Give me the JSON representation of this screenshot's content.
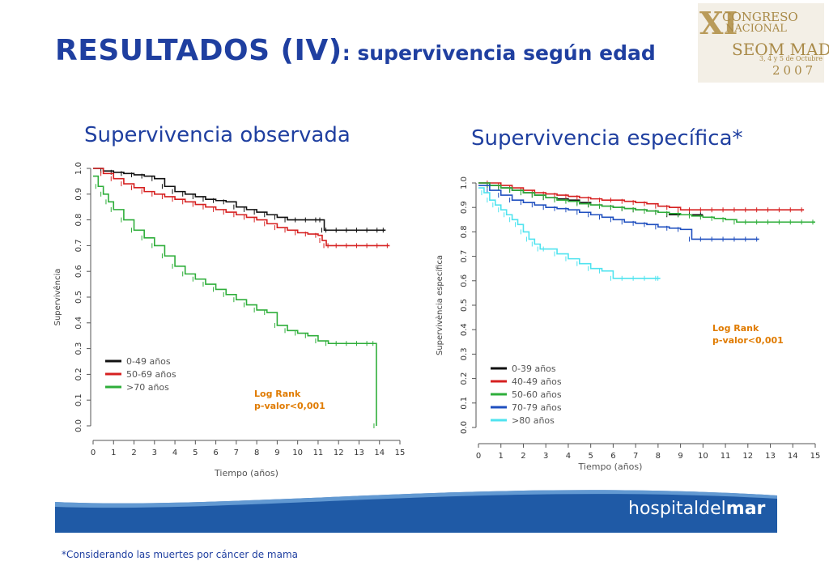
{
  "slide": {
    "title_main": "RESULTADOS (IV)",
    "title_sub": ": supervivencia según edad",
    "footnote": "*Considerando las muertes por cáncer de mama",
    "brand_prefix": "hospitaldel",
    "brand_bold": "mar"
  },
  "logo": {
    "numeral": "XI",
    "line1": "CONGRESO",
    "line2": "NACIONAL",
    "line3": "SEOM MADRID",
    "line4": "3, 4 y 5 de Octubre",
    "line5": "2007"
  },
  "panels": {
    "left_title": "Supervivencia observada",
    "right_title": "Supervivencia específica*"
  },
  "colors": {
    "title_blue": "#1f3fa0",
    "annotation_orange": "#e07b00",
    "banner_blue": "#1f5aa6"
  },
  "chart_data": [
    {
      "type": "line",
      "title": "Supervivencia observada",
      "xlabel": "Tiempo (años)",
      "ylabel": "Supervivência",
      "xlim": [
        0,
        15
      ],
      "ylim": [
        0,
        1
      ],
      "xticks": [
        "0",
        "1",
        "2",
        "3",
        "4",
        "5",
        "6",
        "7",
        "8",
        "9",
        "10",
        "11",
        "12",
        "13",
        "14",
        "15"
      ],
      "yticks": [
        "0.0",
        "0.1",
        "0.2",
        "0.3",
        "0.4",
        "0.5",
        "0.6",
        "0.7",
        "0.8",
        "0.9",
        "1.0"
      ],
      "legend_position": "bottom-left",
      "annotation": [
        "Log Rank",
        "p-valor<0,001"
      ],
      "series": [
        {
          "name": "0-49 años",
          "color": "#111111",
          "x": [
            0,
            0.5,
            1,
            1.5,
            2,
            2.5,
            3,
            3.5,
            4,
            4.5,
            5,
            5.5,
            6,
            6.5,
            7,
            7.5,
            8,
            8.5,
            9,
            9.5,
            10,
            10.5,
            11,
            11.2,
            11.3,
            11.5,
            12,
            12.5,
            13,
            13.5,
            14,
            14.3
          ],
          "y": [
            1.0,
            0.99,
            0.985,
            0.98,
            0.975,
            0.97,
            0.96,
            0.93,
            0.91,
            0.9,
            0.89,
            0.88,
            0.875,
            0.87,
            0.85,
            0.84,
            0.83,
            0.82,
            0.81,
            0.8,
            0.8,
            0.8,
            0.8,
            0.8,
            0.76,
            0.76,
            0.76,
            0.76,
            0.76,
            0.76,
            0.76,
            0.76
          ]
        },
        {
          "name": "50-69 años",
          "color": "#d62020",
          "x": [
            0,
            0.5,
            1,
            1.5,
            2,
            2.5,
            3,
            3.5,
            4,
            4.5,
            5,
            5.5,
            6,
            6.5,
            7,
            7.5,
            8,
            8.5,
            9,
            9.5,
            10,
            10.5,
            11,
            11.2,
            11.4,
            11.6,
            12,
            12.5,
            13,
            13.5,
            14,
            14.5
          ],
          "y": [
            1.0,
            0.98,
            0.96,
            0.94,
            0.925,
            0.91,
            0.9,
            0.89,
            0.88,
            0.87,
            0.86,
            0.85,
            0.84,
            0.83,
            0.82,
            0.81,
            0.8,
            0.785,
            0.77,
            0.76,
            0.75,
            0.745,
            0.74,
            0.72,
            0.7,
            0.7,
            0.7,
            0.7,
            0.7,
            0.7,
            0.7,
            0.7
          ]
        },
        {
          "name": ">70 años",
          "color": "#2eae3a",
          "x": [
            0,
            0.25,
            0.5,
            0.75,
            1,
            1.5,
            2,
            2.5,
            3,
            3.5,
            4,
            4.5,
            5,
            5.5,
            6,
            6.5,
            7,
            7.5,
            8,
            8.5,
            9,
            9.5,
            10,
            10.5,
            11,
            11.5,
            12,
            12.5,
            13,
            13.5,
            13.8,
            13.85
          ],
          "y": [
            0.97,
            0.93,
            0.9,
            0.87,
            0.84,
            0.8,
            0.76,
            0.73,
            0.7,
            0.66,
            0.62,
            0.59,
            0.57,
            0.55,
            0.53,
            0.51,
            0.49,
            0.47,
            0.45,
            0.44,
            0.39,
            0.37,
            0.36,
            0.35,
            0.33,
            0.32,
            0.32,
            0.32,
            0.32,
            0.32,
            0.32,
            0.0
          ]
        }
      ]
    },
    {
      "type": "line",
      "title": "Supervivencia específica*",
      "xlabel": "Tiempo (años)",
      "ylabel": "Supervivència específica",
      "xlim": [
        0,
        15
      ],
      "ylim": [
        0,
        1
      ],
      "xticks": [
        "0",
        "1",
        "2",
        "3",
        "4",
        "5",
        "6",
        "7",
        "8",
        "9",
        "10",
        "11",
        "12",
        "13",
        "14",
        "15"
      ],
      "yticks": [
        "0.0",
        "0.1",
        "0.2",
        "0.3",
        "0.4",
        "0.5",
        "0.6",
        "0.7",
        "0.8",
        "0.9",
        "1.0"
      ],
      "legend_position": "bottom-left",
      "annotation": [
        "Log Rank",
        "p-valor<0,001"
      ],
      "series": [
        {
          "name": "0-39 años",
          "color": "#111111",
          "x": [
            0,
            0.5,
            1,
            1.5,
            2,
            2.5,
            3,
            3.5,
            4,
            4.5,
            5,
            5.5,
            6,
            6.5,
            7,
            7.5,
            8,
            8.5,
            9,
            9.5,
            10
          ],
          "y": [
            1.0,
            0.99,
            0.98,
            0.97,
            0.96,
            0.95,
            0.94,
            0.935,
            0.93,
            0.92,
            0.91,
            0.905,
            0.9,
            0.895,
            0.89,
            0.885,
            0.88,
            0.87,
            0.87,
            0.87,
            0.87
          ]
        },
        {
          "name": "40-49 años",
          "color": "#d62020",
          "x": [
            0,
            0.5,
            1,
            1.5,
            2,
            2.5,
            3,
            3.5,
            4,
            4.5,
            5,
            5.5,
            6,
            6.5,
            7,
            7.5,
            8,
            8.5,
            9,
            9.5,
            10,
            10.5,
            11,
            11.5,
            12,
            12.5,
            13,
            13.5,
            14,
            14.5
          ],
          "y": [
            1.0,
            1.0,
            0.99,
            0.98,
            0.97,
            0.96,
            0.955,
            0.95,
            0.945,
            0.94,
            0.935,
            0.93,
            0.93,
            0.925,
            0.92,
            0.915,
            0.905,
            0.9,
            0.89,
            0.89,
            0.89,
            0.89,
            0.89,
            0.89,
            0.89,
            0.89,
            0.89,
            0.89,
            0.89,
            0.89
          ]
        },
        {
          "name": "50-60 años",
          "color": "#2eae3a",
          "x": [
            0,
            0.5,
            1,
            1.5,
            2,
            2.5,
            3,
            3.5,
            4,
            4.5,
            5,
            5.5,
            6,
            6.5,
            7,
            7.5,
            8,
            8.5,
            9,
            9.5,
            10,
            10.5,
            11,
            11.5,
            12,
            12.5,
            13,
            13.5,
            14,
            14.5,
            15
          ],
          "y": [
            1.0,
            0.99,
            0.98,
            0.97,
            0.96,
            0.95,
            0.94,
            0.93,
            0.925,
            0.915,
            0.91,
            0.905,
            0.9,
            0.895,
            0.89,
            0.885,
            0.88,
            0.875,
            0.87,
            0.865,
            0.86,
            0.855,
            0.85,
            0.84,
            0.84,
            0.84,
            0.84,
            0.84,
            0.84,
            0.84,
            0.84
          ]
        },
        {
          "name": "70-79 años",
          "color": "#1f4fbf",
          "x": [
            0,
            0.5,
            1,
            1.5,
            2,
            2.5,
            3,
            3.5,
            4,
            4.5,
            5,
            5.5,
            6,
            6.5,
            7,
            7.5,
            8,
            8.5,
            9,
            9.5,
            10,
            10.5,
            11,
            11.5,
            12,
            12.5
          ],
          "y": [
            0.99,
            0.97,
            0.95,
            0.93,
            0.92,
            0.91,
            0.9,
            0.895,
            0.89,
            0.88,
            0.87,
            0.86,
            0.85,
            0.84,
            0.835,
            0.83,
            0.82,
            0.815,
            0.81,
            0.77,
            0.77,
            0.77,
            0.77,
            0.77,
            0.77,
            0.77
          ]
        },
        {
          "name": ">80 años",
          "color": "#4fe3ef",
          "x": [
            0,
            0.25,
            0.5,
            0.75,
            1,
            1.25,
            1.5,
            1.75,
            2,
            2.25,
            2.5,
            2.75,
            3,
            3.5,
            4,
            4.5,
            5,
            5.5,
            6,
            6.5,
            7,
            7.5,
            8,
            8.1
          ],
          "y": [
            0.98,
            0.96,
            0.93,
            0.91,
            0.89,
            0.87,
            0.85,
            0.83,
            0.8,
            0.77,
            0.75,
            0.73,
            0.73,
            0.71,
            0.69,
            0.67,
            0.65,
            0.64,
            0.61,
            0.61,
            0.61,
            0.61,
            0.61,
            0.61
          ]
        }
      ]
    }
  ]
}
